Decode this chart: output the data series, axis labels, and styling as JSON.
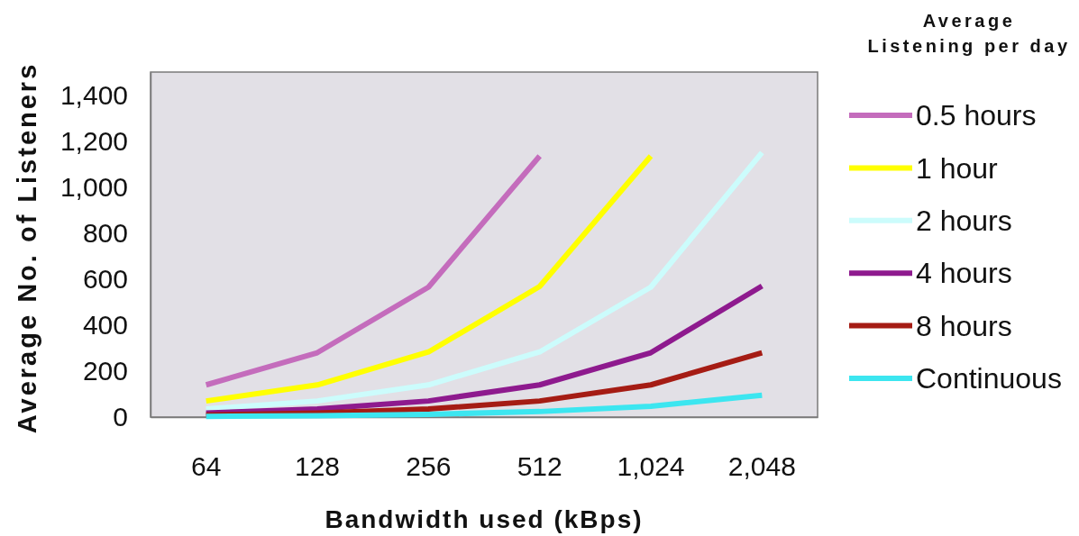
{
  "chart_data": {
    "type": "line",
    "xlabel": "Bandwidth used (kBps)",
    "ylabel": "Average No. of Listeners",
    "legend_title": "Average Listening per day",
    "legend": "right",
    "categories": [
      "64",
      "128",
      "256",
      "512",
      "1,024",
      "2,048"
    ],
    "ylim": [
      0,
      1500
    ],
    "yticks": [
      0,
      200,
      400,
      600,
      800,
      {
        "value": 1000,
        "label": "1,000"
      },
      {
        "value": 1200,
        "label": "1,200"
      },
      {
        "value": 1400,
        "label": "1,400"
      }
    ],
    "series": [
      {
        "name": "0.5 hours",
        "color": "#c46cbc",
        "values": [
          140,
          280,
          565,
          1135,
          null,
          null
        ]
      },
      {
        "name": "1 hour",
        "color": "#ffff00",
        "values": [
          70,
          140,
          283,
          568,
          1135,
          null
        ]
      },
      {
        "name": "2 hours",
        "color": "#ccfcfc",
        "values": [
          35,
          70,
          140,
          283,
          565,
          1150
        ]
      },
      {
        "name": "4 hours",
        "color": "#8e1a8e",
        "values": [
          18,
          35,
          70,
          140,
          280,
          570
        ]
      },
      {
        "name": "8 hours",
        "color": "#a51c14",
        "values": [
          9,
          18,
          35,
          70,
          140,
          280
        ]
      },
      {
        "name": "Continuous",
        "color": "#3ce6f0",
        "values": [
          3,
          6,
          12,
          24,
          47,
          95
        ]
      }
    ]
  }
}
